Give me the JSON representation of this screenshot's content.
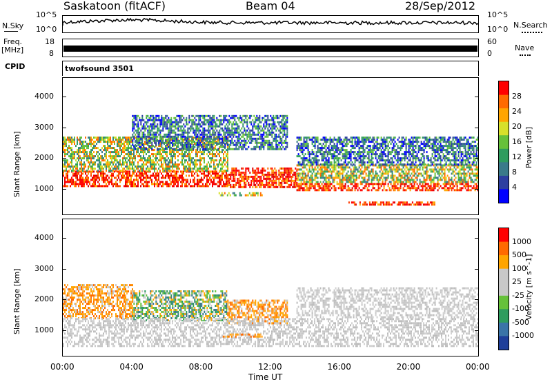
{
  "header": {
    "title": "Saskatoon (fitACF)",
    "beam": "Beam 04",
    "date": "28/Sep/2012"
  },
  "noise_panel": {
    "left_label": "N.Sky",
    "left_ticks": [
      "10^5",
      "10^0"
    ],
    "right_label": "N.Search",
    "right_ticks": [
      "10^5",
      "10^0"
    ]
  },
  "freq_panel": {
    "left_label_top": "Freq.",
    "left_label_bottom": "[MHz]",
    "left_ticks": [
      "18",
      "8"
    ],
    "right_label": "Nave",
    "right_ticks": [
      "60",
      "0"
    ]
  },
  "cpid_panel": {
    "label": "CPID",
    "program": "twofsound 3501"
  },
  "chart_data": [
    {
      "type": "heatmap",
      "name": "power",
      "ylabel": "Slant Range [km]",
      "ylim": [
        180,
        4600
      ],
      "yticks": [
        1000,
        2000,
        3000,
        4000
      ],
      "xlabel": "Time UT",
      "xlim_hours": [
        0,
        24
      ],
      "xticks": [
        "00:00",
        "04:00",
        "08:00",
        "12:00",
        "16:00",
        "20:00",
        "00:00"
      ],
      "colorbar": {
        "label": "Power [dB]",
        "ticks": [
          "4",
          "8",
          "12",
          "16",
          "20",
          "24",
          "28"
        ],
        "colors": [
          "#0000ff",
          "#2d3fa0",
          "#3a7a8a",
          "#2e9c5e",
          "#66c13a",
          "#d7e02a",
          "#ffa500",
          "#ff6a00",
          "#ff0000"
        ]
      },
      "bands": [
        {
          "start": 0.0,
          "end": 9.5,
          "low": 1100,
          "high": 1600,
          "level": "high"
        },
        {
          "start": 9.5,
          "end": 13.5,
          "low": 1050,
          "high": 1700,
          "level": "high"
        },
        {
          "start": 13.5,
          "end": 24.0,
          "low": 950,
          "high": 1200,
          "level": "high"
        },
        {
          "start": 0.0,
          "end": 9.5,
          "low": 1600,
          "high": 2700,
          "level": "mid"
        },
        {
          "start": 13.5,
          "end": 24.0,
          "low": 1200,
          "high": 1800,
          "level": "mid"
        },
        {
          "start": 4.0,
          "end": 13.0,
          "low": 2300,
          "high": 3400,
          "level": "low"
        },
        {
          "start": 13.5,
          "end": 24.0,
          "low": 1800,
          "high": 2700,
          "level": "low"
        },
        {
          "start": 16.5,
          "end": 21.5,
          "low": 500,
          "high": 600,
          "level": "high"
        },
        {
          "start": 9.0,
          "end": 11.5,
          "low": 820,
          "high": 900,
          "level": "mid"
        }
      ]
    },
    {
      "type": "heatmap",
      "name": "velocity",
      "ylabel": "Slant Range [km]",
      "ylim": [
        180,
        4600
      ],
      "yticks": [
        1000,
        2000,
        3000,
        4000
      ],
      "xlabel": "Time UT",
      "xlim_hours": [
        0,
        24
      ],
      "xticks": [
        "00:00",
        "04:00",
        "08:00",
        "12:00",
        "16:00",
        "20:00",
        "00:00"
      ],
      "colorbar": {
        "label": "Velocity [m s^-1]",
        "ticks": [
          "1000",
          "500",
          "100",
          "25",
          "-25",
          "-100",
          "-500",
          "-1000"
        ],
        "colors": [
          "#1f3f9a",
          "#3a74a8",
          "#2e9c5e",
          "#66c13a",
          "#c8c8c8",
          "#c8c8c8",
          "#ffa500",
          "#ff6a00",
          "#ff0000"
        ]
      },
      "bands": [
        {
          "start": 0.0,
          "end": 4.0,
          "low": 1400,
          "high": 2500,
          "level": "orange"
        },
        {
          "start": 4.0,
          "end": 9.5,
          "low": 1300,
          "high": 2300,
          "level": "green"
        },
        {
          "start": 9.5,
          "end": 13.0,
          "low": 1200,
          "high": 2000,
          "level": "orange"
        },
        {
          "start": 0.0,
          "end": 24.0,
          "low": 500,
          "high": 1400,
          "level": "gray"
        },
        {
          "start": 13.5,
          "end": 24.0,
          "low": 1400,
          "high": 2400,
          "level": "gray"
        },
        {
          "start": 9.0,
          "end": 11.5,
          "low": 780,
          "high": 900,
          "level": "orange"
        }
      ]
    }
  ]
}
